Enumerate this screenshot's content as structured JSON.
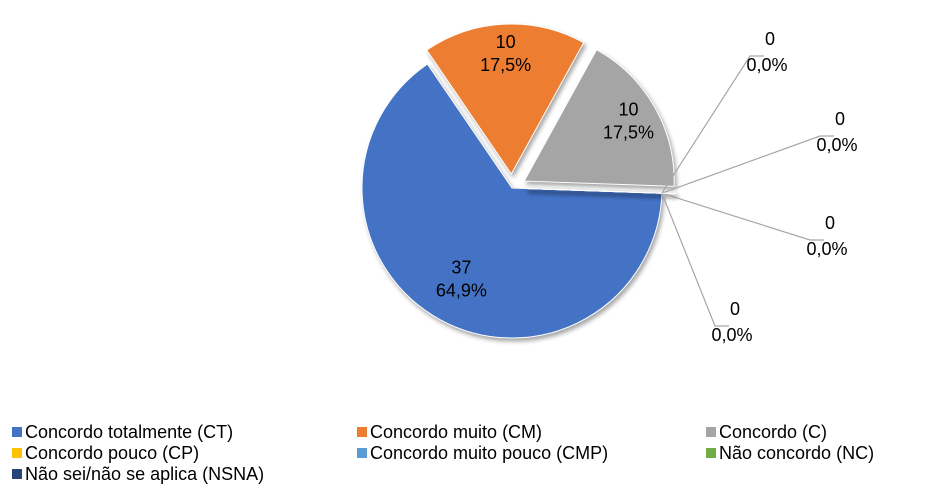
{
  "chart_data": {
    "type": "pie",
    "categories": [
      "Concordo totalmente (CT)",
      "Concordo muito (CM)",
      "Concordo (C)",
      "Concordo pouco (CP)",
      "Concordo muito pouco (CMP)",
      "Não concordo (NC)",
      "Não sei/não se aplica (NSNA)"
    ],
    "values": [
      37,
      10,
      10,
      0,
      0,
      0,
      0
    ],
    "percent_labels": [
      "64,9%",
      "17,5%",
      "17,5%",
      "0,0%",
      "0,0%",
      "0,0%",
      "0,0%"
    ],
    "colors": [
      "#4472c4",
      "#ed7d31",
      "#a5a5a5",
      "#ffc000",
      "#5b9bd5",
      "#70ad47",
      "#264478"
    ],
    "legend": "bottom"
  }
}
